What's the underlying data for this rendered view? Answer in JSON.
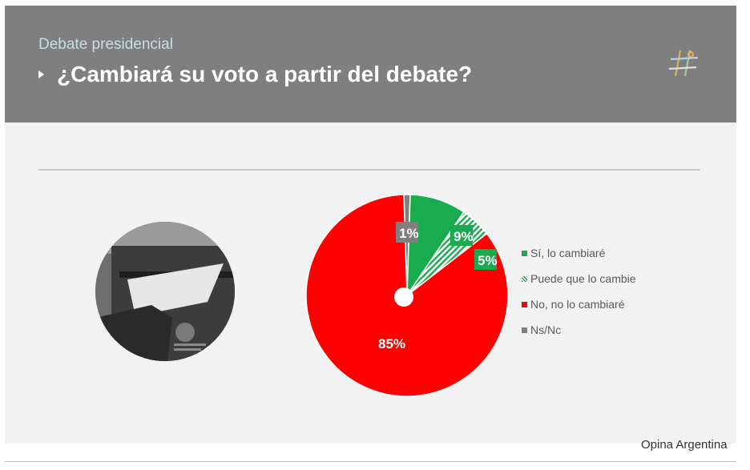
{
  "header": {
    "subtitle": "Debate presidencial",
    "title": "¿Cambiará su voto a partir del debate?"
  },
  "chart_data": {
    "type": "pie",
    "title": "¿Cambiará su voto a partir del debate?",
    "slices": [
      {
        "label": "Sí, lo cambiaré",
        "value": 9,
        "display": "9%",
        "color": "#1aab4f",
        "pattern": "solid"
      },
      {
        "label": "Puede que lo cambie",
        "value": 5,
        "display": "5%",
        "color": "#1aab4f",
        "pattern": "hatched"
      },
      {
        "label": "No, no lo cambiaré",
        "value": 85,
        "display": "85%",
        "color": "#ff0000",
        "pattern": "solid"
      },
      {
        "label": "Ns/Nc",
        "value": 1,
        "display": "1%",
        "color": "#7f7f7f",
        "pattern": "solid"
      }
    ],
    "legend_position": "right"
  },
  "colors": {
    "header_bg": "#7f7f7f",
    "slide_bg": "#f2f2f2",
    "subtitle": "#c9dde6",
    "green": "#1aab4f",
    "red": "#ff0000",
    "gray": "#7f7f7f"
  },
  "icons": {
    "logo": "hashtag-logo-icon",
    "bullet": "triangle-bullet-icon"
  },
  "source": "Opina Argentina"
}
